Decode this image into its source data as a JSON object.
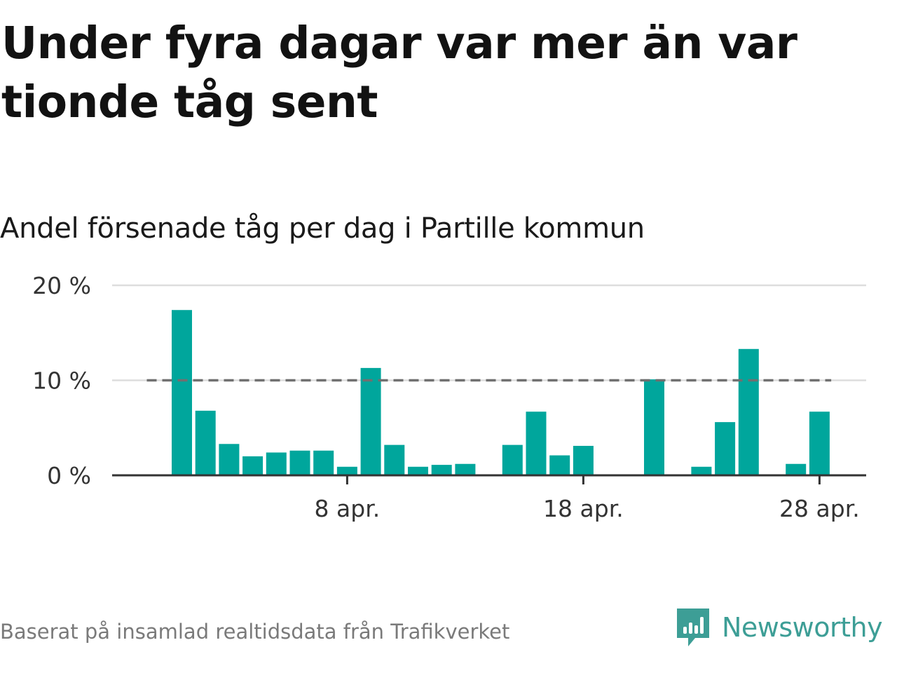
{
  "title": "Under fyra dagar var mer än var tionde tåg sent",
  "subtitle": "Andel försenade tåg per dag i Partille kommun",
  "source": "Baserat på insamlad realtidsdata från Trafikverket",
  "brand": {
    "name": "Newsworthy",
    "icon": "newsworthy-logo-icon",
    "color": "#3d9e96"
  },
  "colors": {
    "bar": "#00a69c",
    "reference_line": "#707070",
    "grid": "#dddddd",
    "axis": "#333333"
  },
  "chart_data": {
    "type": "bar",
    "x_unit": "day of April",
    "x": [
      1,
      2,
      3,
      4,
      5,
      6,
      7,
      8,
      9,
      10,
      11,
      12,
      13,
      14,
      15,
      16,
      17,
      18,
      19,
      20,
      21,
      22,
      23,
      24,
      25,
      26,
      27,
      28,
      29
    ],
    "values": [
      17.4,
      6.8,
      3.3,
      2.0,
      2.4,
      2.6,
      2.6,
      0.9,
      11.3,
      3.2,
      0.9,
      1.1,
      1.2,
      0,
      3.2,
      6.7,
      2.1,
      3.1,
      0,
      0,
      10.1,
      0,
      0.9,
      5.6,
      13.3,
      0,
      1.2,
      6.7,
      0
    ],
    "ylim": [
      0,
      20
    ],
    "yticks": [
      0,
      10,
      20
    ],
    "ytick_labels": [
      "0 %",
      "10 %",
      "20 %"
    ],
    "xticks": [
      8,
      18,
      28
    ],
    "xtick_labels": [
      "8 apr.",
      "18 apr.",
      "28 apr."
    ],
    "reference_line": {
      "y": 10,
      "style": "dashed"
    },
    "grid": true,
    "legend": false
  }
}
